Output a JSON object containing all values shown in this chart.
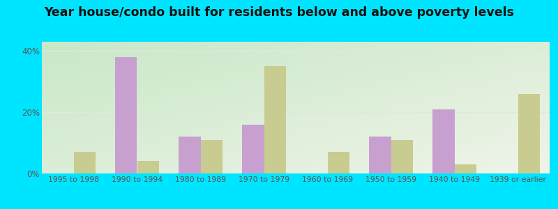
{
  "categories": [
    "1995 to 1998",
    "1990 to 1994",
    "1980 to 1989",
    "1970 to 1979",
    "1960 to 1969",
    "1950 to 1959",
    "1940 to 1949",
    "1939 or earlier"
  ],
  "below_poverty": [
    0,
    38.0,
    12.0,
    16.0,
    0,
    12.0,
    21.0,
    0
  ],
  "above_poverty": [
    7.0,
    4.0,
    11.0,
    35.0,
    7.0,
    11.0,
    3.0,
    26.0
  ],
  "below_color": "#c8a0d0",
  "above_color": "#c8cc90",
  "title": "Year house/condo built for residents below and above poverty levels",
  "title_fontsize": 12.5,
  "ylabel_ticks": [
    "0%",
    "20%",
    "40%"
  ],
  "ytick_vals": [
    0,
    20,
    40
  ],
  "ylim": [
    0,
    43
  ],
  "outer_background": "#00e5ff",
  "bar_width": 0.35,
  "grid_color": "#e0e8e0",
  "gradient_top_left": "#c8e8c8",
  "gradient_bottom_right": "#f0f4e8"
}
